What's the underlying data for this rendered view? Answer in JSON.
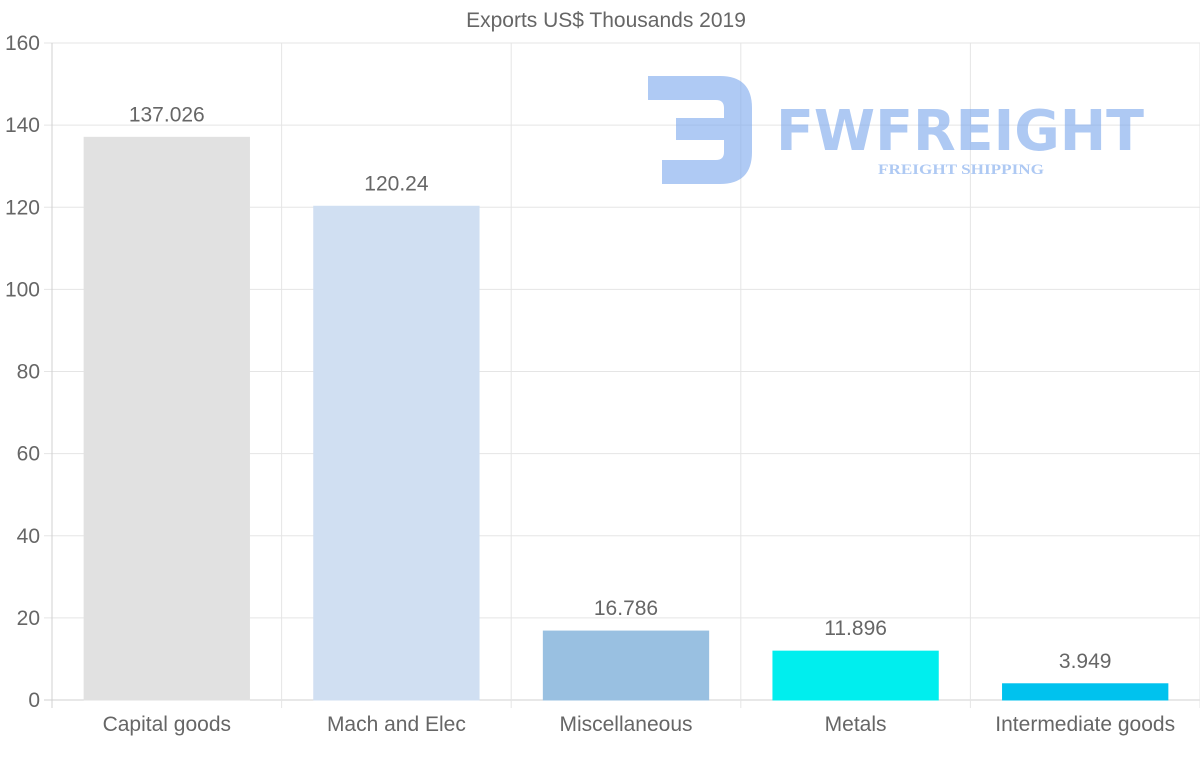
{
  "chart_data": {
    "type": "bar",
    "title": "Exports US$ Thousands 2019",
    "categories": [
      "Capital goods",
      "Mach and Elec",
      "Miscellaneous",
      "Metals",
      "Intermediate goods"
    ],
    "values": [
      137.026,
      120.24,
      16.786,
      11.896,
      3.949
    ],
    "value_labels": [
      "137.026",
      "120.24",
      "16.786",
      "11.896",
      "3.949"
    ],
    "colors": [
      "#e8e8e8",
      "#d6e6f9",
      "#9ec6e8",
      "#00f5f5",
      "#00c8f5"
    ],
    "ylim": [
      0,
      160
    ],
    "yticks": [
      0,
      20,
      40,
      60,
      80,
      100,
      120,
      140,
      160
    ],
    "xlabel": "",
    "ylabel": "",
    "grid": true
  },
  "watermark": {
    "brand": "FWFREIGHT",
    "tagline": "FREIGHT SHIPPING"
  }
}
